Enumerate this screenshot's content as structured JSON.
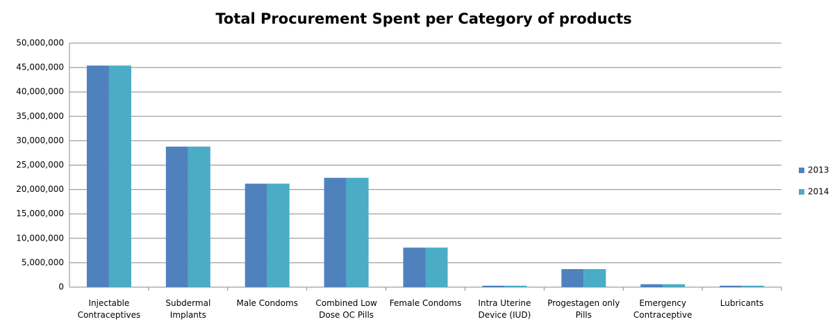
{
  "chart_data": {
    "type": "bar",
    "title": "Total Procurement Spent per Category of products",
    "categories": [
      "Injectable Contraceptives",
      "Subdermal Implants",
      "Male Condoms",
      "Combined Low Dose OC Pills",
      "Female Condoms",
      "Intra Uterine Device (IUD)",
      "Progestagen only Pills",
      "Emergency Contraceptive",
      "Lubricants"
    ],
    "series": [
      {
        "name": "2013",
        "color": "#4f81bd",
        "values": [
          45400000,
          28800000,
          21200000,
          22400000,
          8100000,
          300000,
          3700000,
          600000,
          300000
        ]
      },
      {
        "name": "2014",
        "color": "#4bacc6",
        "values": [
          45400000,
          28800000,
          21200000,
          22400000,
          8100000,
          300000,
          3700000,
          600000,
          300000
        ]
      }
    ],
    "ylim": [
      0,
      50000000
    ],
    "yticks": [
      0,
      {
        "value": 5000000,
        "label": "5,000,000"
      },
      {
        "value": 10000000,
        "label": "10,000,000"
      },
      {
        "value": 15000000,
        "label": "15,000,000"
      },
      {
        "value": 20000000,
        "label": "20,000,000"
      },
      {
        "value": 25000000,
        "label": "25,000,000"
      },
      {
        "value": 30000000,
        "label": "30,000,000"
      },
      {
        "value": 35000000,
        "label": "35,000,000"
      },
      {
        "value": 40000000,
        "label": "40,000,000"
      },
      {
        "value": 45000000,
        "label": "45,000,000"
      },
      {
        "value": 50000000,
        "label": "50,000,000"
      }
    ],
    "grid": true,
    "legend": "right"
  }
}
